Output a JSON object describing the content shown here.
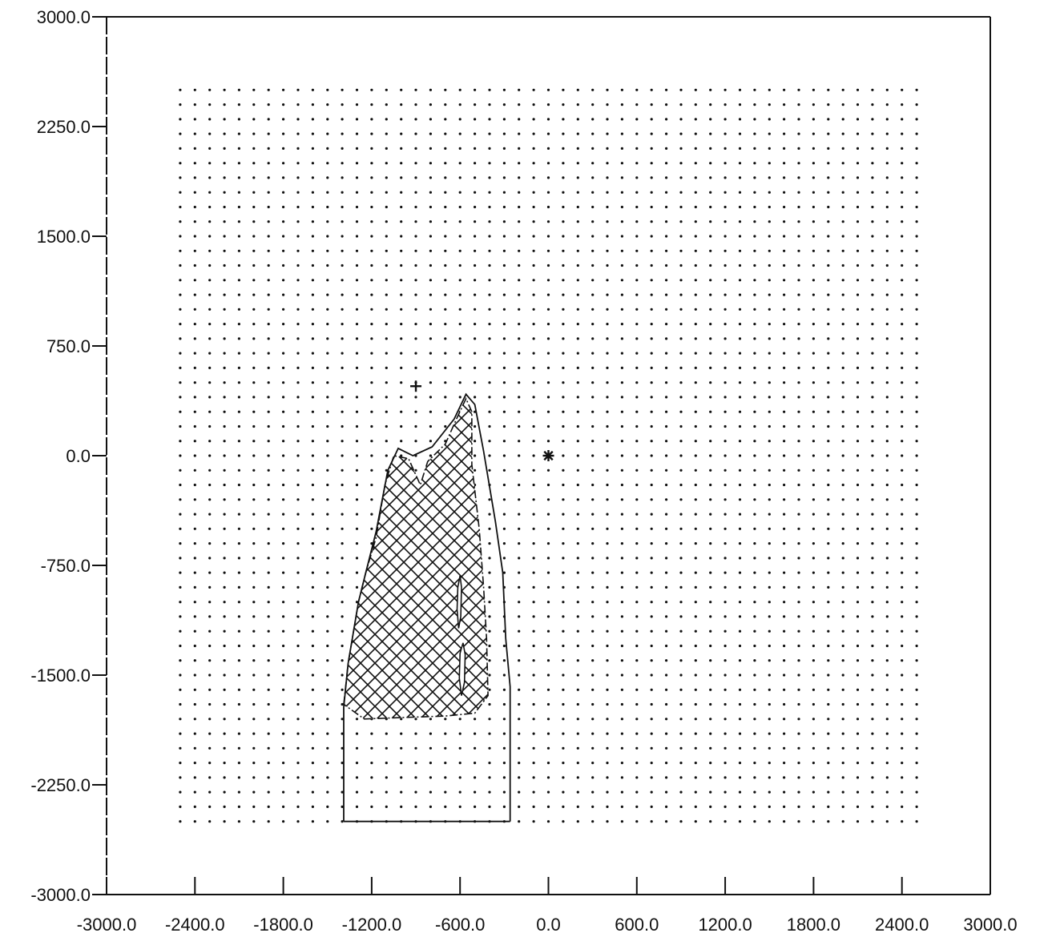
{
  "chart_data": {
    "type": "scatter",
    "title": "",
    "xlabel": "",
    "ylabel": "",
    "xlim": [
      -3000,
      3000
    ],
    "ylim": [
      -3000,
      3000
    ],
    "x_ticks": [
      -3000,
      -2400,
      -1800,
      -1200,
      -600,
      0,
      600,
      1200,
      1800,
      2400,
      3000
    ],
    "x_tick_labels": [
      "-3000.0",
      "-2400.0",
      "-1800.0",
      "-1200.0",
      "-600.0",
      "0.0",
      "600.0",
      "1200.0",
      "1800.0",
      "2400.0",
      "3000.0"
    ],
    "y_ticks": [
      3000,
      2250,
      1500,
      750,
      0,
      -750,
      -1500,
      -2250,
      -3000
    ],
    "y_tick_labels": [
      "3000.0",
      "2250.0",
      "1500.0",
      "750.0",
      "0.0",
      "-750.0",
      "-1500.0",
      "-2250.0",
      "-3000.0"
    ],
    "grid_points": {
      "x_start": -2500,
      "x_end": 2500,
      "x_step": 100,
      "y_start": -2500,
      "y_end": 2500,
      "y_step": 100
    },
    "markers": [
      {
        "symbol": "plus",
        "x": -900,
        "y": 475
      },
      {
        "symbol": "asterisk",
        "x": 0,
        "y": 0
      }
    ],
    "outer_contour": [
      [
        -1390,
        -2500
      ],
      [
        -1390,
        -1720
      ],
      [
        -1360,
        -1420
      ],
      [
        -1290,
        -1000
      ],
      [
        -1240,
        -800
      ],
      [
        -1170,
        -520
      ],
      [
        -1090,
        -100
      ],
      [
        -1020,
        50
      ],
      [
        -920,
        0
      ],
      [
        -790,
        60
      ],
      [
        -640,
        250
      ],
      [
        -560,
        420
      ],
      [
        -500,
        350
      ],
      [
        -440,
        30
      ],
      [
        -360,
        -450
      ],
      [
        -310,
        -800
      ],
      [
        -290,
        -1250
      ],
      [
        -260,
        -1580
      ],
      [
        -260,
        -2500
      ]
    ],
    "hatched_region": [
      [
        -1390,
        -1700
      ],
      [
        -1360,
        -1420
      ],
      [
        -1290,
        -1000
      ],
      [
        -1240,
        -800
      ],
      [
        -1170,
        -560
      ],
      [
        -1110,
        -200
      ],
      [
        -1050,
        0
      ],
      [
        -950,
        -20
      ],
      [
        -870,
        -200
      ],
      [
        -820,
        -40
      ],
      [
        -700,
        80
      ],
      [
        -620,
        260
      ],
      [
        -560,
        390
      ],
      [
        -520,
        300
      ],
      [
        -520,
        -60
      ],
      [
        -470,
        -500
      ],
      [
        -440,
        -900
      ],
      [
        -420,
        -1250
      ],
      [
        -410,
        -1640
      ],
      [
        -500,
        -1760
      ],
      [
        -700,
        -1780
      ],
      [
        -1000,
        -1790
      ],
      [
        -1250,
        -1800
      ]
    ],
    "inner_contours": [
      [
        [
          -615,
          -900
        ],
        [
          -600,
          -820
        ],
        [
          -590,
          -900
        ],
        [
          -595,
          -1100
        ],
        [
          -610,
          -1180
        ],
        [
          -620,
          -1050
        ]
      ],
      [
        [
          -600,
          -1350
        ],
        [
          -580,
          -1280
        ],
        [
          -565,
          -1360
        ],
        [
          -570,
          -1550
        ],
        [
          -590,
          -1640
        ],
        [
          -605,
          -1520
        ]
      ]
    ],
    "grid": false,
    "legend": "none"
  }
}
